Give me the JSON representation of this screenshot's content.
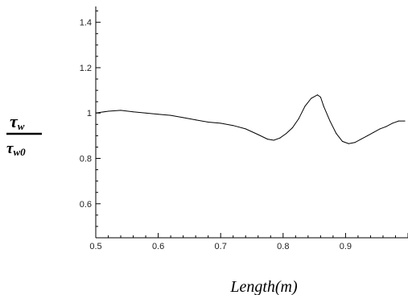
{
  "chart_data": {
    "type": "line",
    "title": "",
    "xlabel": "Length(m)",
    "ylabel": {
      "numerator": "τ",
      "numerator_sub": "w",
      "denominator": "τ",
      "denominator_sub": "w0"
    },
    "xlim": [
      0.5,
      1.0
    ],
    "ylim": [
      0.45,
      1.47
    ],
    "xticks": [
      "0.5",
      "0.6",
      "0.7",
      "0.8",
      "0.9"
    ],
    "yticks": [
      "0.6",
      "0.8",
      "1",
      "1.2",
      "1.4"
    ],
    "grid": false,
    "series": [
      {
        "x": [
          0.5,
          0.52,
          0.54,
          0.56,
          0.58,
          0.6,
          0.62,
          0.64,
          0.66,
          0.68,
          0.7,
          0.72,
          0.74,
          0.76,
          0.775,
          0.785,
          0.795,
          0.805,
          0.815,
          0.825,
          0.835,
          0.845,
          0.855,
          0.86,
          0.865,
          0.875,
          0.885,
          0.895,
          0.905,
          0.915,
          0.925,
          0.935,
          0.945,
          0.955,
          0.965,
          0.975,
          0.985,
          0.995
        ],
        "y": [
          1.0,
          1.008,
          1.012,
          1.005,
          1.0,
          0.995,
          0.99,
          0.98,
          0.97,
          0.96,
          0.955,
          0.945,
          0.93,
          0.905,
          0.885,
          0.88,
          0.89,
          0.91,
          0.935,
          0.975,
          1.03,
          1.065,
          1.08,
          1.07,
          1.03,
          0.965,
          0.91,
          0.875,
          0.865,
          0.87,
          0.885,
          0.9,
          0.915,
          0.93,
          0.94,
          0.955,
          0.965,
          0.965
        ]
      }
    ]
  }
}
